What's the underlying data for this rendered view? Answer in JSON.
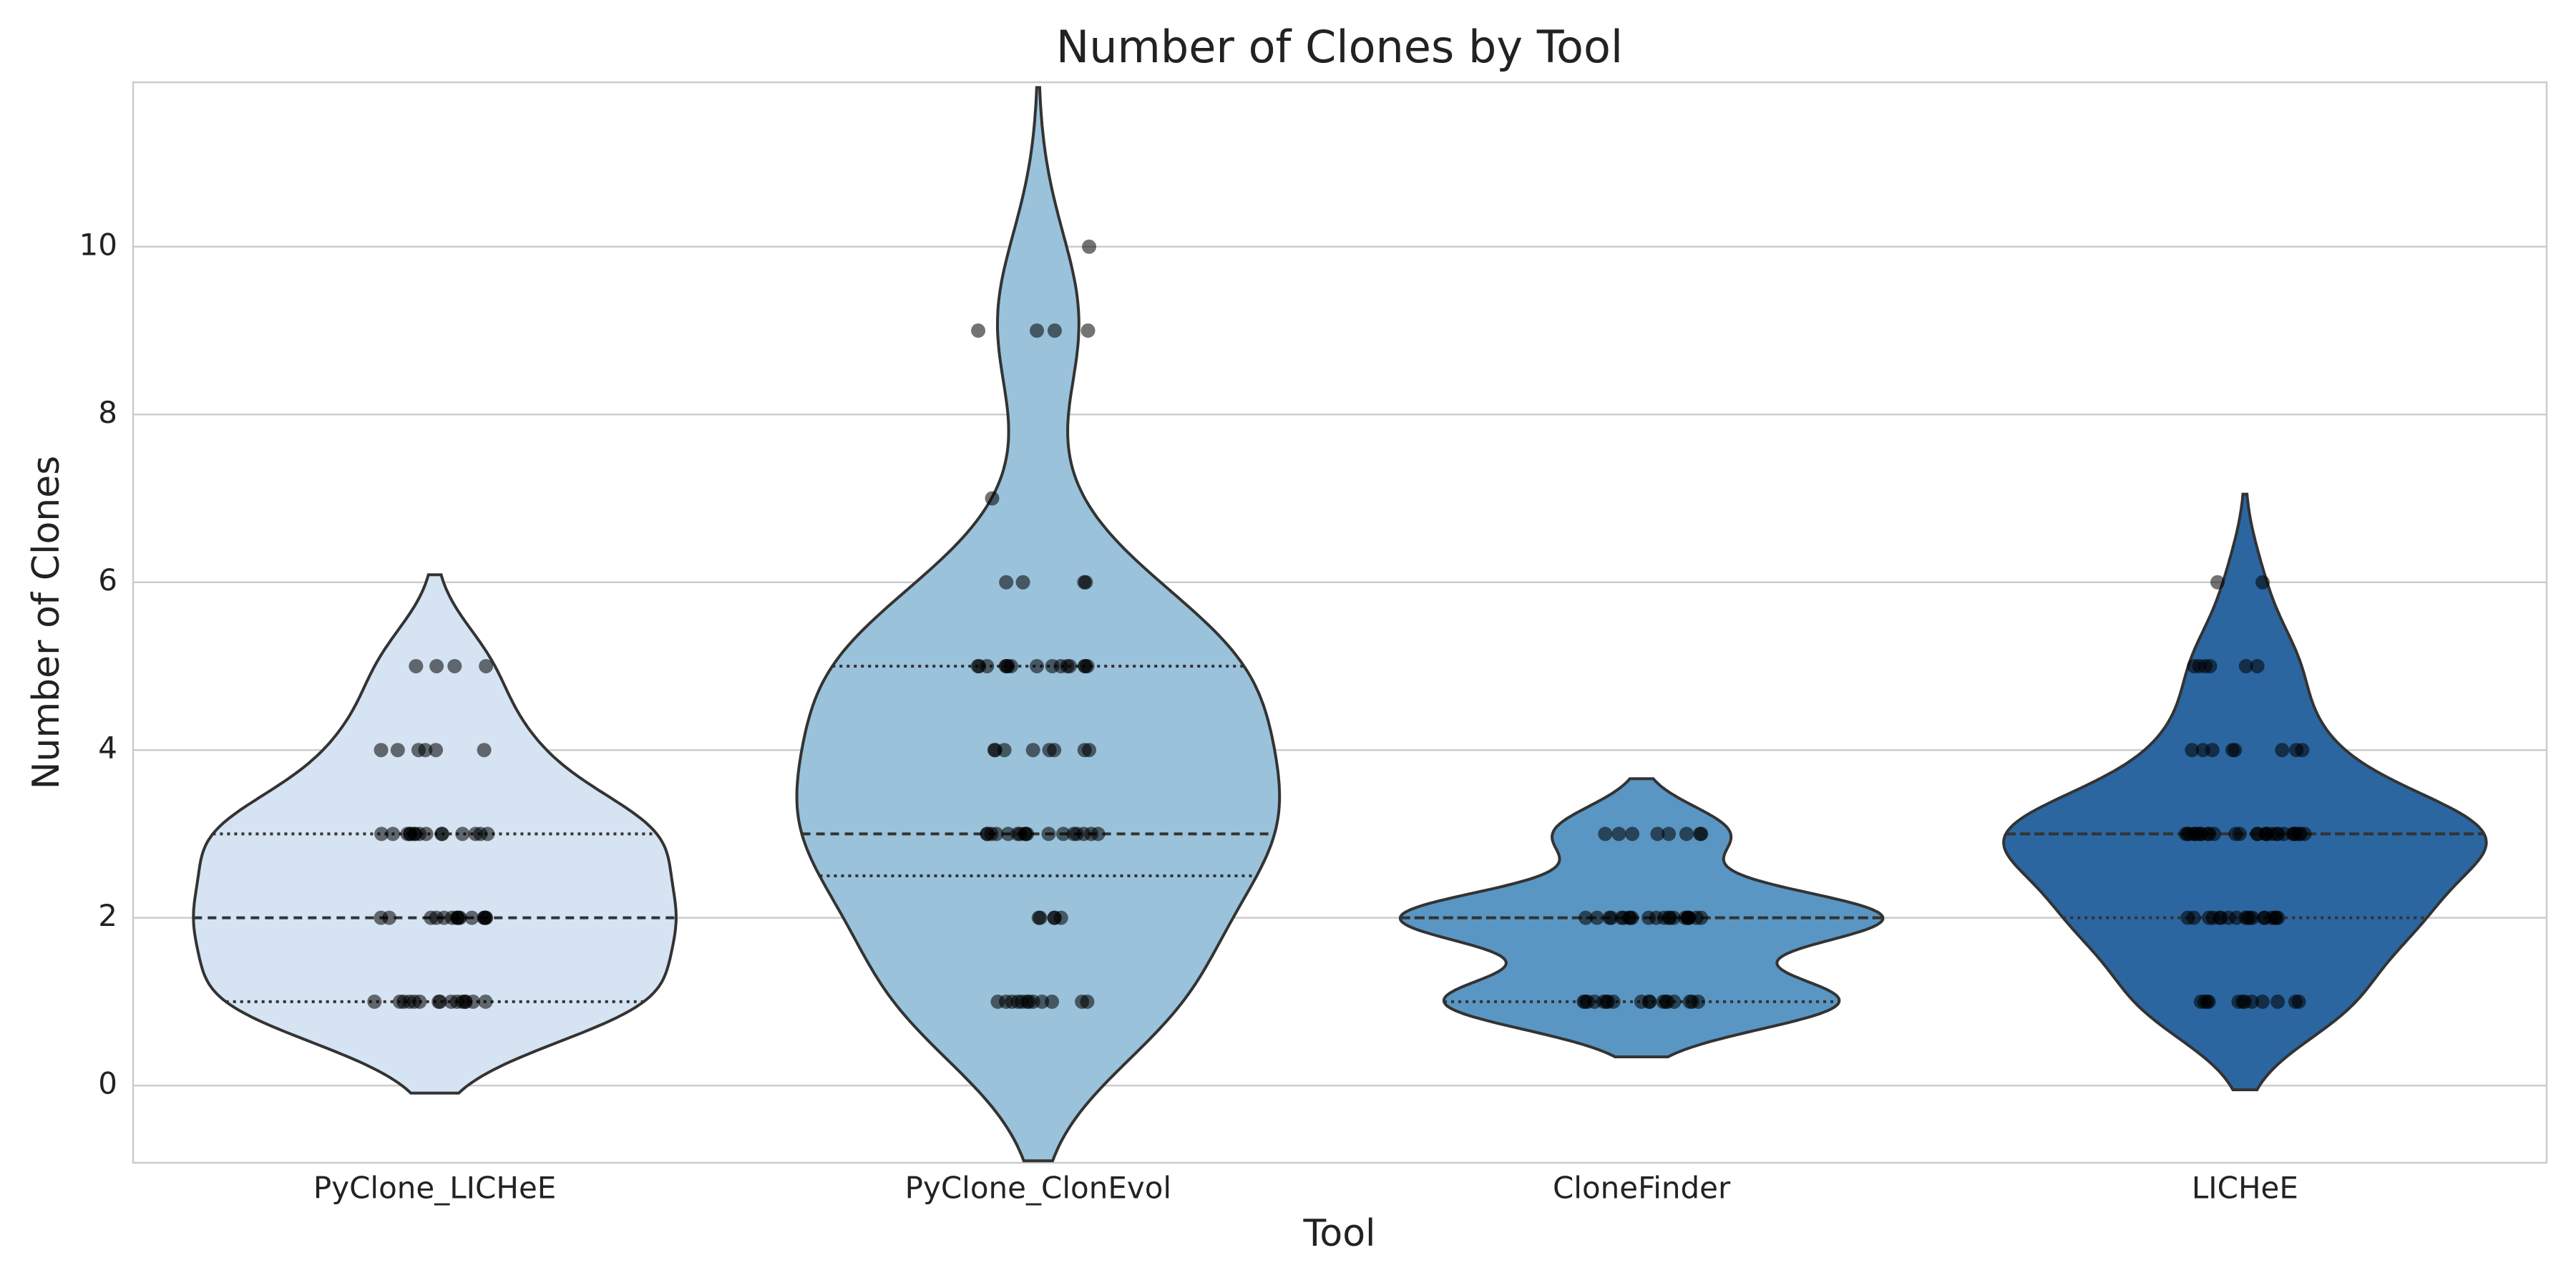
{
  "chart_data": {
    "type": "violin",
    "title": "Number of Clones by Tool",
    "x_label": "Tool",
    "y_label": "Number of Clones",
    "categories": [
      "PyClone_LICHeE",
      "PyClone_ClonEvol",
      "CloneFinder",
      "LICHeE"
    ],
    "series": [
      {
        "name": "PyClone_LICHeE",
        "color": "#d5e3f2",
        "values": [
          1,
          1,
          1,
          1,
          1,
          1,
          1,
          1,
          1,
          1,
          1,
          1,
          1,
          1,
          1,
          2,
          2,
          2,
          2,
          2,
          2,
          2,
          2,
          2,
          2,
          2,
          2,
          2,
          2,
          2,
          3,
          3,
          3,
          3,
          3,
          3,
          3,
          3,
          3,
          3,
          3,
          3,
          3,
          3,
          3,
          4,
          4,
          4,
          4,
          4,
          4,
          5,
          5,
          5,
          5
        ]
      },
      {
        "name": "PyClone_ClonEvol",
        "color": "#9ac2da",
        "values": [
          1,
          1,
          1,
          1,
          1,
          1,
          1,
          1,
          1,
          1,
          1,
          1,
          2,
          2,
          2,
          2,
          2,
          3,
          3,
          3,
          3,
          3,
          3,
          3,
          3,
          3,
          3,
          3,
          3,
          3,
          3,
          3,
          3,
          3,
          4,
          4,
          4,
          4,
          4,
          4,
          4,
          4,
          5,
          5,
          5,
          5,
          5,
          5,
          5,
          5,
          5,
          5,
          5,
          5,
          5,
          5,
          5,
          6,
          6,
          6,
          6,
          7,
          9,
          9,
          9,
          9,
          10
        ]
      },
      {
        "name": "CloneFinder",
        "color": "#5a96c3",
        "values": [
          1,
          1,
          1,
          1,
          1,
          1,
          1,
          1,
          1,
          1,
          1,
          1,
          1,
          1,
          1,
          1,
          1,
          1,
          2,
          2,
          2,
          2,
          2,
          2,
          2,
          2,
          2,
          2,
          2,
          2,
          2,
          2,
          2,
          2,
          2,
          2,
          2,
          2,
          2,
          2,
          3,
          3,
          3,
          3,
          3,
          3,
          3,
          3
        ]
      },
      {
        "name": "LICHeE",
        "color": "#2b66a1",
        "values": [
          1,
          1,
          1,
          1,
          1,
          1,
          1,
          1,
          1,
          1,
          1,
          1,
          2,
          2,
          2,
          2,
          2,
          2,
          2,
          2,
          2,
          2,
          2,
          2,
          2,
          2,
          2,
          2,
          2,
          2,
          3,
          3,
          3,
          3,
          3,
          3,
          3,
          3,
          3,
          3,
          3,
          3,
          3,
          3,
          3,
          3,
          3,
          3,
          3,
          3,
          3,
          3,
          3,
          3,
          3,
          3,
          3,
          3,
          4,
          4,
          4,
          4,
          4,
          4,
          4,
          4,
          5,
          5,
          5,
          5,
          5,
          5,
          6,
          6
        ]
      }
    ],
    "ylim": [
      -0.92,
      11.96
    ],
    "yticks": [
      0,
      2,
      4,
      6,
      8,
      10
    ],
    "grid": true
  }
}
